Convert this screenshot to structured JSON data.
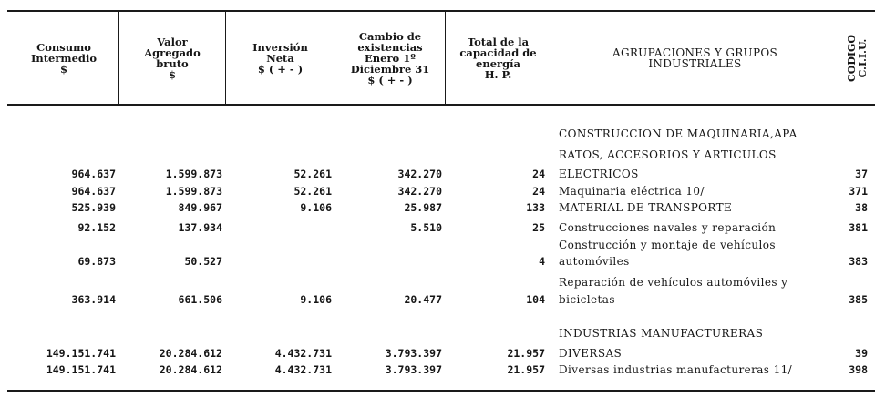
{
  "headers": {
    "consumo": "Consumo\nIntermedio\n$",
    "valor": "Valor\nAgregado\nbruto\n$",
    "inversion": "Inversión\nNeta\n$ ( + - )",
    "cambio": "Cambio de\nexistencias\nEnero 1º\nDiciembre 31\n$ ( + - )",
    "capacidad": "Total de la\ncapacidad de\nenergía\nH. P.",
    "agrupaciones": "AGRUPACIONES Y GRUPOS\nINDUSTRIALES",
    "codigo": "CODIGO\nC.I.I.U."
  },
  "rows": [
    {
      "desc": "CONSTRUCCION DE MAQUINARIA,APA",
      "consumo": "",
      "valor": "",
      "inversion": "",
      "cambio": "",
      "hp": "",
      "code": ""
    },
    {
      "desc": "RATOS, ACCESORIOS Y ARTICULOS",
      "consumo": "",
      "valor": "",
      "inversion": "",
      "cambio": "",
      "hp": "",
      "code": ""
    },
    {
      "desc": "ELECTRICOS",
      "consumo": "964.637",
      "valor": "1.599.873",
      "inversion": "52.261",
      "cambio": "342.270",
      "hp": "24",
      "code": "37"
    },
    {
      "desc": "Maquinaria eléctrica 10/",
      "consumo": "964.637",
      "valor": "1.599.873",
      "inversion": "52.261",
      "cambio": "342.270",
      "hp": "24",
      "code": "371"
    },
    {
      "desc": "MATERIAL DE TRANSPORTE",
      "consumo": "525.939",
      "valor": "849.967",
      "inversion": "9.106",
      "cambio": "25.987",
      "hp": "133",
      "code": "38"
    },
    {
      "desc": "Construcciones navales y reparación",
      "consumo": "92.152",
      "valor": "137.934",
      "inversion": "",
      "cambio": "5.510",
      "hp": "25",
      "code": "381"
    },
    {
      "desc": "Construcción y montaje de vehículos",
      "consumo": "",
      "valor": "",
      "inversion": "",
      "cambio": "",
      "hp": "",
      "code": ""
    },
    {
      "desc": "automóviles",
      "consumo": "69.873",
      "valor": "50.527",
      "inversion": "",
      "cambio": "",
      "hp": "4",
      "code": "383"
    },
    {
      "desc": "Reparación de vehículos automóviles y",
      "consumo": "",
      "valor": "",
      "inversion": "",
      "cambio": "",
      "hp": "",
      "code": ""
    },
    {
      "desc": "bicicletas",
      "consumo": "363.914",
      "valor": "661.506",
      "inversion": "9.106",
      "cambio": "20.477",
      "hp": "104",
      "code": "385"
    },
    {
      "desc": "INDUSTRIAS MANUFACTURERAS",
      "consumo": "",
      "valor": "",
      "inversion": "",
      "cambio": "",
      "hp": "",
      "code": ""
    },
    {
      "desc": "DIVERSAS",
      "consumo": "149.151.741",
      "valor": "20.284.612",
      "inversion": "4.432.731",
      "cambio": "3.793.397",
      "hp": "21.957",
      "code": "39"
    },
    {
      "desc": "Diversas industrias manufactureras 11/",
      "consumo": "149.151.741",
      "valor": "20.284.612",
      "inversion": "4.432.731",
      "cambio": "3.793.397",
      "hp": "21.957",
      "code": "398"
    }
  ]
}
